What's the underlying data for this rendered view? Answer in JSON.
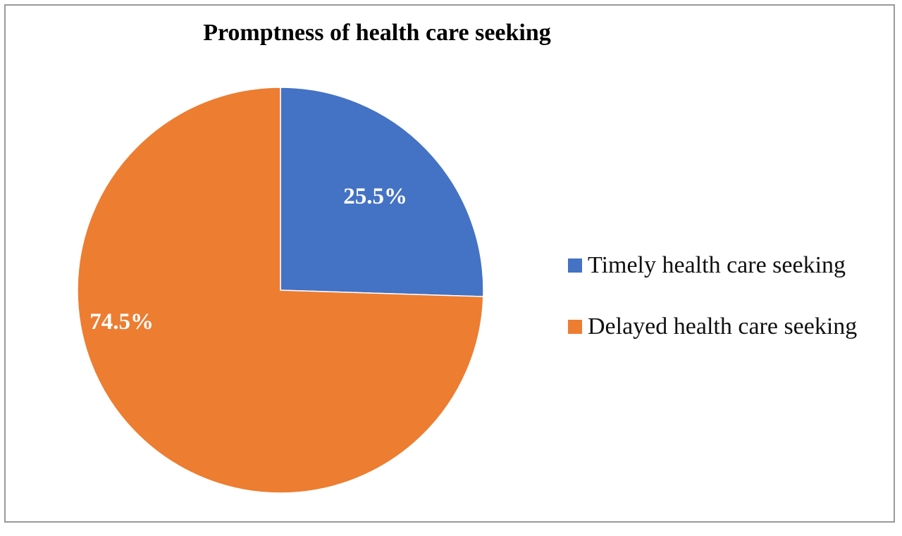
{
  "chart_data": {
    "type": "pie",
    "title": "Promptness of health care seeking",
    "slices": [
      {
        "name": "Timely health care seeking",
        "value": 25.5,
        "label": "25.5%",
        "color": "#4472C4"
      },
      {
        "name": "Delayed health care seeking",
        "value": 74.5,
        "label": "74.5%",
        "color": "#ED7D31"
      }
    ],
    "start_angle": "12 o'clock",
    "direction": "clockwise",
    "legend_position": "right"
  }
}
